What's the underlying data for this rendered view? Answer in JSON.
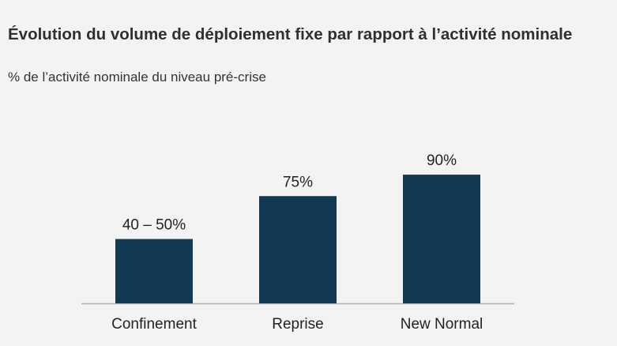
{
  "chart_data": {
    "type": "bar",
    "title": "Évolution du volume de déploiement fixe par rapport à l’activité nominale",
    "subtitle": "% de l’activité nominale du niveau pré-crise",
    "categories": [
      "Confinement",
      "Reprise",
      "New Normal"
    ],
    "values": [
      45,
      75,
      90
    ],
    "value_labels": [
      "40 – 50%",
      "75%",
      "90%"
    ],
    "color": "#133a55"
  }
}
